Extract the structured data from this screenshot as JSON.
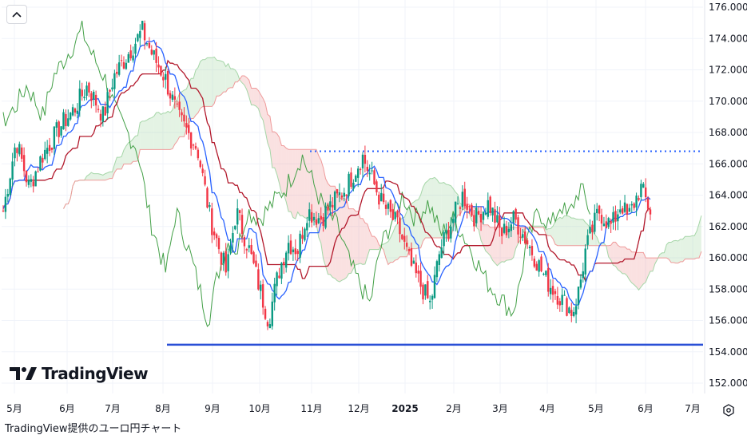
{
  "chart_data": {
    "type": "candlestick",
    "y_ticks": [
      "176.000",
      "174.000",
      "172.000",
      "170.000",
      "168.000",
      "166.000",
      "164.000",
      "162.000",
      "160.000",
      "158.000",
      "156.000",
      "154.000",
      "152.000"
    ],
    "y_values": [
      176,
      174,
      172,
      170,
      168,
      166,
      164,
      162,
      160,
      158,
      156,
      154,
      152
    ],
    "x_ticks": [
      {
        "label": "5月",
        "bold": false
      },
      {
        "label": "6月",
        "bold": false
      },
      {
        "label": "7月",
        "bold": false
      },
      {
        "label": "8月",
        "bold": false
      },
      {
        "label": "9月",
        "bold": false
      },
      {
        "label": "10月",
        "bold": false
      },
      {
        "label": "11月",
        "bold": false
      },
      {
        "label": "12月",
        "bold": false
      },
      {
        "label": "2025",
        "bold": true
      },
      {
        "label": "2月",
        "bold": false
      },
      {
        "label": "3月",
        "bold": false
      },
      {
        "label": "4月",
        "bold": false
      },
      {
        "label": "5月",
        "bold": false
      },
      {
        "label": "6月",
        "bold": false
      },
      {
        "label": "7月",
        "bold": false
      }
    ],
    "ylim": [
      151.3,
      176.6
    ],
    "indicators": [
      "ichimoku-tenkan",
      "ichimoku-kijun",
      "ichimoku-chikou",
      "ichimoku-cloud"
    ],
    "horizontal_lines": [
      {
        "value": 166.8,
        "style": "dotted",
        "color": "#2962ff"
      },
      {
        "value": 154.45,
        "style": "solid",
        "color": "#2a4fd6"
      }
    ],
    "price_path": [
      [
        163.0,
        0
      ],
      [
        167.5,
        0.02
      ],
      [
        164.5,
        0.04
      ],
      [
        166.5,
        0.06
      ],
      [
        168.5,
        0.09
      ],
      [
        169.5,
        0.11
      ],
      [
        171.0,
        0.13
      ],
      [
        169.0,
        0.155
      ],
      [
        171.5,
        0.17
      ],
      [
        173.5,
        0.2
      ],
      [
        174.5,
        0.215
      ],
      [
        173.0,
        0.23
      ],
      [
        171.5,
        0.25
      ],
      [
        169.0,
        0.27
      ],
      [
        167.0,
        0.3
      ],
      [
        162.5,
        0.32
      ],
      [
        159.0,
        0.345
      ],
      [
        163.0,
        0.36
      ],
      [
        160.5,
        0.38
      ],
      [
        157.5,
        0.4
      ],
      [
        156.0,
        0.41
      ],
      [
        159.0,
        0.425
      ],
      [
        161.0,
        0.44
      ],
      [
        160.5,
        0.455
      ],
      [
        163.0,
        0.47
      ],
      [
        162.5,
        0.49
      ],
      [
        163.5,
        0.51
      ],
      [
        164.5,
        0.53
      ],
      [
        166.5,
        0.555
      ],
      [
        165.5,
        0.565
      ],
      [
        163.5,
        0.585
      ],
      [
        162.0,
        0.61
      ],
      [
        159.5,
        0.63
      ],
      [
        157.0,
        0.66
      ],
      [
        160.5,
        0.675
      ],
      [
        162.0,
        0.69
      ],
      [
        164.0,
        0.71
      ],
      [
        162.5,
        0.73
      ],
      [
        163.5,
        0.75
      ],
      [
        161.5,
        0.77
      ],
      [
        162.5,
        0.79
      ],
      [
        161.0,
        0.81
      ],
      [
        158.5,
        0.84
      ],
      [
        157.5,
        0.86
      ],
      [
        156.5,
        0.88
      ],
      [
        158.0,
        0.89
      ],
      [
        160.5,
        0.9
      ],
      [
        163.0,
        0.92
      ],
      [
        162.0,
        0.94
      ],
      [
        163.5,
        0.955
      ],
      [
        162.5,
        0.965
      ],
      [
        163.5,
        0.975
      ],
      [
        164.5,
        0.985
      ],
      [
        163.0,
        1.0
      ]
    ],
    "colors": {
      "up": "#089981",
      "down": "#f23645",
      "tenkan": "#2962ff",
      "kijun": "#b2182b",
      "chikou": "#43a047",
      "cloud_green": "#a5d6a7",
      "cloud_red": "#ef9a9a"
    }
  },
  "logo": {
    "text": "TradingView"
  },
  "caption": "TradingView提供のユーロ円チャート"
}
